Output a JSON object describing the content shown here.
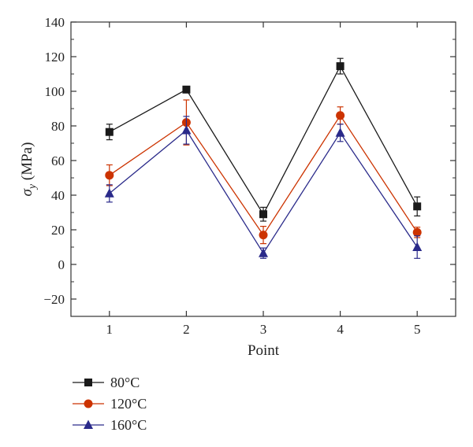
{
  "chart_data": {
    "type": "line",
    "categories": [
      "1",
      "2",
      "3",
      "4",
      "5"
    ],
    "xlabel": "Point",
    "ylabel_symbol": "σ",
    "ylabel_sub": "y",
    "ylabel_unit": " (MPa)",
    "ylim": [
      -30,
      140
    ],
    "yticks": [
      -20,
      0,
      20,
      40,
      60,
      80,
      100,
      120,
      140
    ],
    "grid": false,
    "legend_position": "bottom-left",
    "series": [
      {
        "name": "80°C",
        "color": "#1a1a1a",
        "marker": "square",
        "values": [
          76.5,
          101,
          29,
          114.5,
          33.5
        ],
        "errors": [
          4.5,
          0,
          4,
          4.5,
          5.5
        ]
      },
      {
        "name": "120°C",
        "color": "#cc3300",
        "marker": "circle",
        "values": [
          51.5,
          82,
          17,
          86,
          18.5
        ],
        "errors": [
          6,
          13,
          5,
          5,
          3
        ]
      },
      {
        "name": "160°C",
        "color": "#2a2a8a",
        "marker": "triangle",
        "values": [
          41,
          77.5,
          6.5,
          76,
          10
        ],
        "errors": [
          5,
          8,
          3,
          5,
          6.5
        ]
      }
    ]
  }
}
